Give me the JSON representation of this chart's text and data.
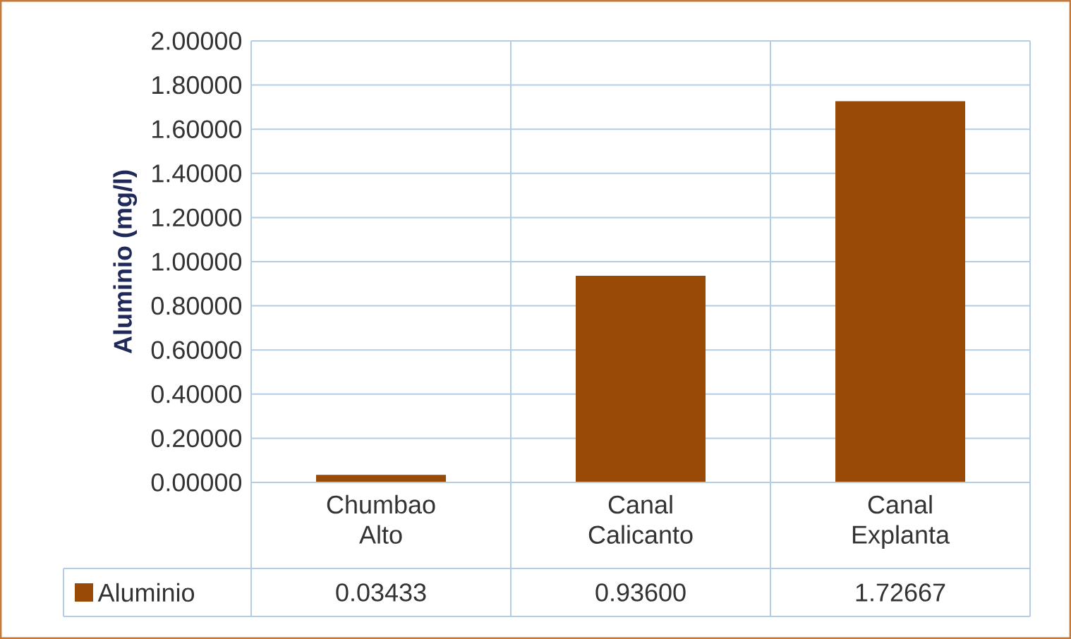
{
  "chart_data": {
    "type": "bar",
    "ylabel": "Aluminio (mg/l)",
    "categories": [
      "Chumbao Alto",
      "Canal Calicanto",
      "Canal Explanta"
    ],
    "series": [
      {
        "name": "Aluminio",
        "color": "#9a4a07",
        "values": [
          0.03433,
          0.936,
          1.72667
        ],
        "value_labels": [
          "0.03433",
          "0.93600",
          "1.72667"
        ]
      }
    ],
    "ylim": [
      0,
      2
    ],
    "yticks": [
      {
        "value": 0,
        "label": "0.00000"
      },
      {
        "value": 0.2,
        "label": "0.20000"
      },
      {
        "value": 0.4,
        "label": "0.40000"
      },
      {
        "value": 0.6,
        "label": "0.60000"
      },
      {
        "value": 0.8,
        "label": "0.80000"
      },
      {
        "value": 1,
        "label": "1.00000"
      },
      {
        "value": 1.2,
        "label": "1.20000"
      },
      {
        "value": 1.4,
        "label": "1.40000"
      },
      {
        "value": 1.6,
        "label": "1.60000"
      },
      {
        "value": 1.8,
        "label": "1.80000"
      },
      {
        "value": 2,
        "label": "2.00000"
      }
    ],
    "grid": "y",
    "legend": "bottom"
  }
}
